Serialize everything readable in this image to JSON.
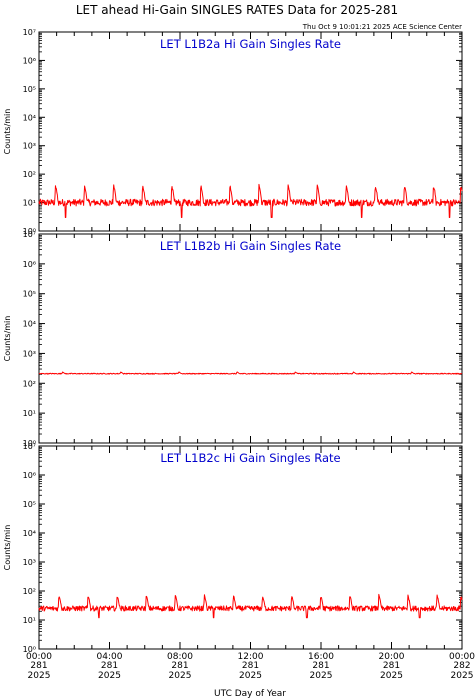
{
  "header": {
    "title": "LET ahead Hi-Gain SINGLES RATES Data for 2025-281",
    "timestamp": "Thu Oct  9 10:01:21 2025 ACE Science Center"
  },
  "colors": {
    "series": "#ff0000",
    "panel_title": "#0000cc",
    "axis": "#000000"
  },
  "x_axis": {
    "label": "UTC Day of Year",
    "ticks": [
      {
        "time": "00:00",
        "day": "281",
        "year": "2025",
        "hour": 0
      },
      {
        "time": "04:00",
        "day": "281",
        "year": "2025",
        "hour": 4
      },
      {
        "time": "08:00",
        "day": "281",
        "year": "2025",
        "hour": 8
      },
      {
        "time": "12:00",
        "day": "281",
        "year": "2025",
        "hour": 12
      },
      {
        "time": "16:00",
        "day": "281",
        "year": "2025",
        "hour": 16
      },
      {
        "time": "20:00",
        "day": "281",
        "year": "2025",
        "hour": 20
      },
      {
        "time": "00:00",
        "day": "282",
        "year": "2025",
        "hour": 24
      }
    ]
  },
  "chart_data": [
    {
      "type": "line",
      "title": "LET L1B2a Hi Gain Singles Rate",
      "ylabel": "Counts/min",
      "yscale": "log",
      "ylim": [
        1,
        10000000
      ],
      "xlim_hours": [
        0,
        24
      ],
      "ytick_labels": [
        "10⁰",
        "10¹",
        "10²",
        "10³",
        "10⁴",
        "10⁵",
        "10⁶",
        "10⁷"
      ],
      "series": [
        {
          "baseline": 10,
          "noise_decades": 0.12,
          "spike_values": 40,
          "spike_hours": [
            0.9,
            2.55,
            4.2,
            5.85,
            7.5,
            9.15,
            10.8,
            12.45,
            14.1,
            15.75,
            17.4,
            19.05,
            20.7,
            22.35,
            23.9
          ],
          "dip_values": 3,
          "dip_hours": [
            1.5,
            8.1,
            13.2,
            18.3,
            23.3
          ]
        }
      ]
    },
    {
      "type": "line",
      "title": "LET L1B2b Hi Gain Singles Rate",
      "ylabel": "Counts/min",
      "yscale": "log",
      "ylim": [
        1,
        10000000
      ],
      "xlim_hours": [
        0,
        24
      ],
      "ytick_labels": [
        "10⁰",
        "10¹",
        "10²",
        "10³",
        "10⁴",
        "10⁵",
        "10⁶",
        "10⁷"
      ],
      "series": [
        {
          "baseline": 210,
          "noise_decades": 0.015,
          "spike_values": 240,
          "spike_hours": [
            1.3,
            4.6,
            7.9,
            11.2,
            14.5,
            17.8,
            21.1
          ],
          "dip_values": 200,
          "dip_hours": []
        }
      ]
    },
    {
      "type": "line",
      "title": "LET L1B2c Hi Gain Singles Rate",
      "ylabel": "Counts/min",
      "yscale": "log",
      "ylim": [
        1,
        10000000
      ],
      "xlim_hours": [
        0,
        24
      ],
      "ytick_labels": [
        "10⁰",
        "10¹",
        "10²",
        "10³",
        "10⁴",
        "10⁵",
        "10⁶",
        "10⁷"
      ],
      "series": [
        {
          "baseline": 25,
          "noise_decades": 0.09,
          "spike_values": 70,
          "spike_hours": [
            1.1,
            2.75,
            4.4,
            6.05,
            7.7,
            9.35,
            11.0,
            12.65,
            14.3,
            15.95,
            17.6,
            19.25,
            20.9,
            22.55,
            23.9
          ],
          "dip_values": 12,
          "dip_hours": [
            3.4,
            9.9,
            15.2,
            21.6
          ]
        }
      ]
    }
  ]
}
